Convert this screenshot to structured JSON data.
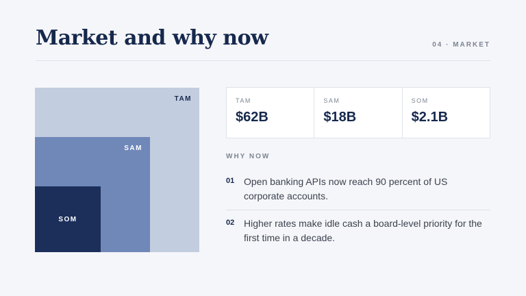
{
  "header": {
    "title": "Market and why now",
    "section": "04 · MARKET"
  },
  "metrics": [
    {
      "label": "TAM",
      "value": "$62B"
    },
    {
      "label": "SAM",
      "value": "$18B"
    },
    {
      "label": "SOM",
      "value": "$2.1B"
    }
  ],
  "why_now": {
    "heading": "WHY NOW",
    "items": [
      {
        "number": "01",
        "text": "Open banking APIs now reach 90 percent of US corporate accounts."
      },
      {
        "number": "02",
        "text": "Higher rates make idle cash a board-level priority for the first time in a decade."
      }
    ]
  }
}
